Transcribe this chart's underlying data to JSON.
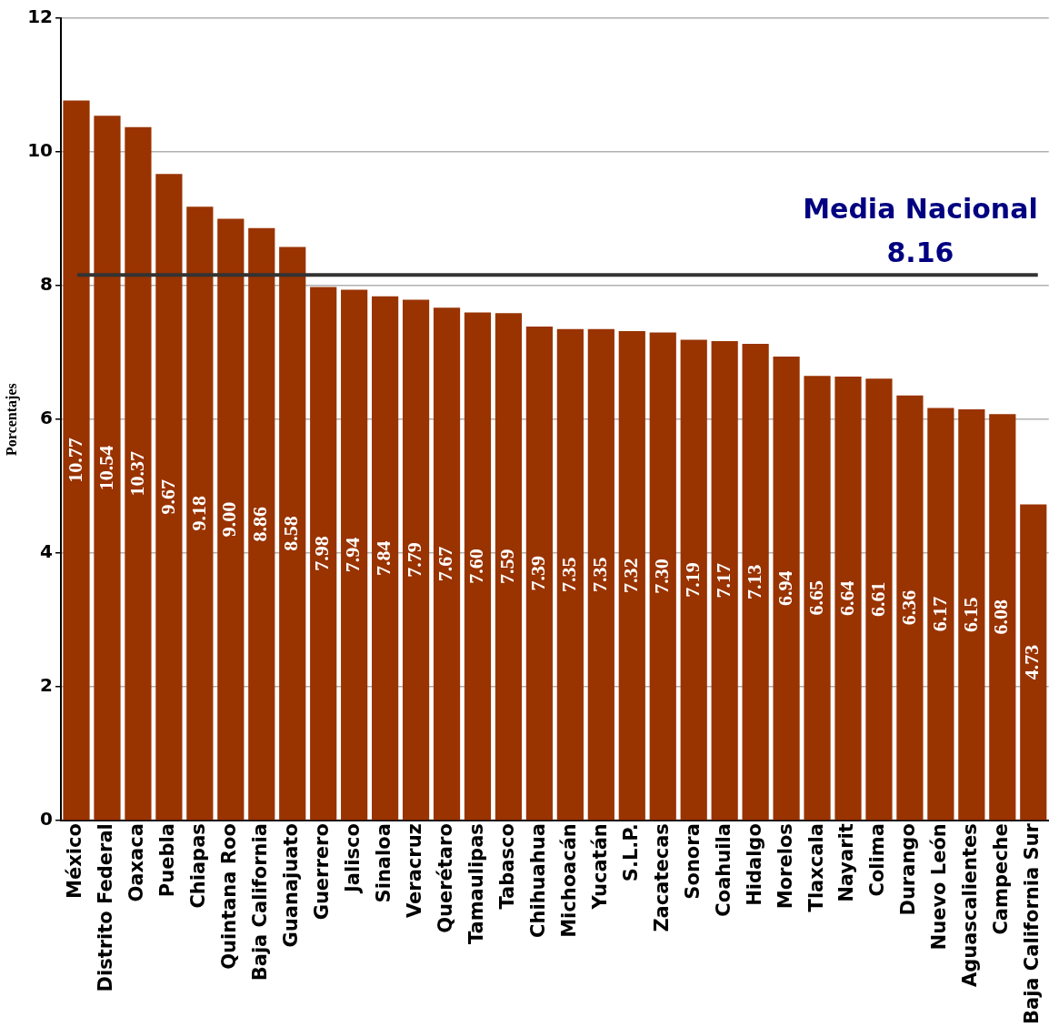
{
  "chart_data": {
    "type": "bar",
    "ylabel": "Porcentajes",
    "categories": [
      "México",
      "Distrito Federal",
      "Oaxaca",
      "Puebla",
      "Chiapas",
      "Quintana Roo",
      "Baja California",
      "Guanajuato",
      "Guerrero",
      "Jalisco",
      "Sinaloa",
      "Veracruz",
      "Querétaro",
      "Tamaulipas",
      "Tabasco",
      "Chihuahua",
      "Michoacán",
      "Yucatán",
      "S.L.P.",
      "Zacatecas",
      "Sonora",
      "Coahuila",
      "Hidalgo",
      "Morelos",
      "Tlaxcala",
      "Nayarit",
      "Colima",
      "Durango",
      "Nuevo León",
      "Aguascalientes",
      "Campeche",
      "Baja California Sur"
    ],
    "values": [
      10.77,
      10.54,
      10.37,
      9.67,
      9.18,
      9.0,
      8.86,
      8.58,
      7.98,
      7.94,
      7.84,
      7.79,
      7.67,
      7.6,
      7.59,
      7.39,
      7.35,
      7.35,
      7.32,
      7.3,
      7.19,
      7.17,
      7.13,
      6.94,
      6.65,
      6.64,
      6.61,
      6.36,
      6.17,
      6.15,
      6.08,
      4.73
    ],
    "value_labels": [
      "10.77",
      "10.54",
      "10.37",
      "9.67",
      "9.18",
      "9.00",
      "8.86",
      "8.58",
      "7.98",
      "7.94",
      "7.84",
      "7.79",
      "7.67",
      "7.60",
      "7.59",
      "7.39",
      "7.35",
      "7.35",
      "7.32",
      "7.30",
      "7.19",
      "7.17",
      "7.13",
      "6.94",
      "6.65",
      "6.64",
      "6.61",
      "6.36",
      "6.17",
      "6.15",
      "6.08",
      "4.73"
    ],
    "color": "#993300",
    "ylim": [
      0,
      12
    ],
    "yticks": [
      0,
      2,
      4,
      6,
      8,
      10,
      12
    ],
    "grid": "y",
    "legend": false,
    "ref_lines": [
      {
        "axis": "y",
        "value": 8.16,
        "label": "Media Nacional\n8.16",
        "color": "#333333"
      }
    ]
  }
}
